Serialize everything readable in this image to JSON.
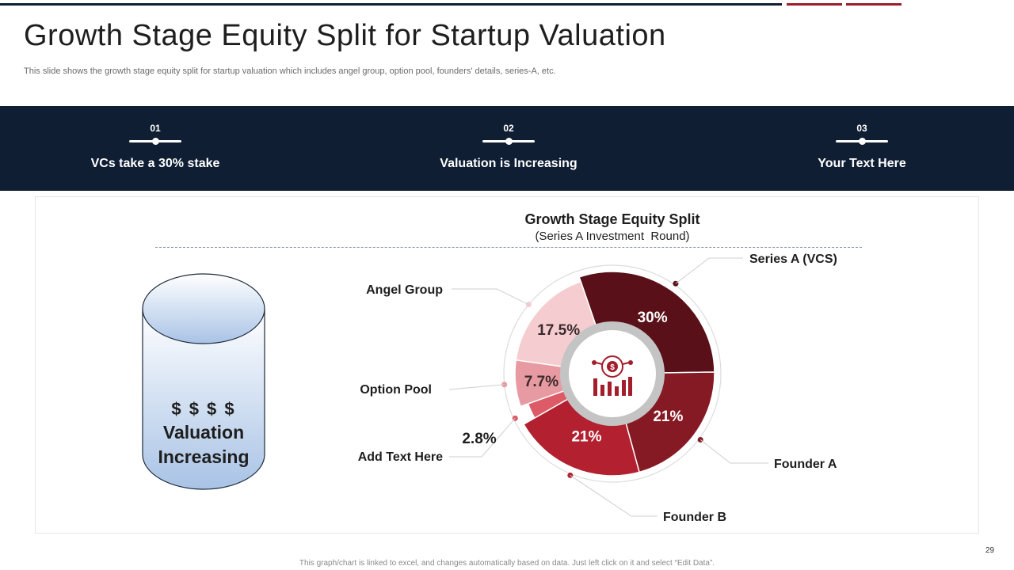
{
  "slide": {
    "title": "Growth Stage Equity Split for Startup Valuation",
    "subtitle": "This slide shows the growth stage equity split for startup valuation which includes angel group, option pool, founders' details, series-A, etc.",
    "footer_note": "This graph/chart is linked to excel, and changes automatically based on data. Just left click on it and select “Edit Data”.",
    "page_number": "29"
  },
  "timeline": {
    "steps": [
      {
        "num": "01",
        "label": "VCs take a 30% stake"
      },
      {
        "num": "02",
        "label": "Valuation is Increasing"
      },
      {
        "num": "03",
        "label": "Your Text Here"
      }
    ]
  },
  "cylinder": {
    "dollars": "$ $ $ $",
    "line1": "Valuation",
    "line2": "Increasing"
  },
  "colors": {
    "navy": "#0f1e33",
    "accent_red": "#9b1c2a"
  },
  "icons": {
    "center": "money-growth-chart-icon"
  },
  "chart_data": {
    "type": "pie",
    "title": "Growth Stage Equity Split",
    "subtitle": "(Series A Investment  Round)",
    "slices": [
      {
        "label": "Series A (VCS)",
        "value": 30,
        "value_label": "30%",
        "color": "#5a1018"
      },
      {
        "label": "Founder A",
        "value": 21,
        "value_label": "21%",
        "color": "#861a24"
      },
      {
        "label": "Founder B",
        "value": 21,
        "value_label": "21%",
        "color": "#b3202f"
      },
      {
        "label": "Add Text Here",
        "value": 2.8,
        "value_label": "2.8%",
        "color": "#dd5a67"
      },
      {
        "label": "Option Pool",
        "value": 7.7,
        "value_label": "7.7%",
        "color": "#e79aa1"
      },
      {
        "label": "Angel Group",
        "value": 17.5,
        "value_label": "17.5%",
        "color": "#f5ccd0"
      }
    ]
  }
}
